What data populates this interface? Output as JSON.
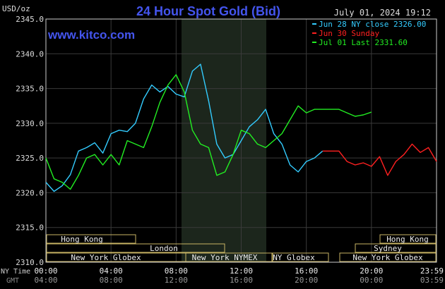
{
  "title": "24 Hour Spot Gold (Bid)",
  "unit_label": "USD/oz",
  "timestamp": "July 01, 2024 19:12",
  "site": "www.kitco.com",
  "legend": [
    {
      "label": "Jun 28 NY close 2326.00",
      "color": "#33ccff"
    },
    {
      "label": "Jun 30 Sunday",
      "color": "#ff2020"
    },
    {
      "label": "Jul 01 Last 2331.60",
      "color": "#22ee22"
    }
  ],
  "markets": [
    {
      "label": "Hong Kong"
    },
    {
      "label": "London"
    },
    {
      "label": "New York Globex"
    },
    {
      "label": "New York NYMEX"
    },
    {
      "label": "NY Globex"
    },
    {
      "label": "Hong Kong"
    },
    {
      "label": "Sydney"
    },
    {
      "label": "New York Globex"
    }
  ],
  "row_labels": {
    "ny": "NY Time",
    "gmt": "GMT"
  },
  "chart_data": {
    "type": "line",
    "title": "24 Hour Spot Gold (Bid)",
    "ylabel": "USD/oz",
    "ylim": [
      2310,
      2345
    ],
    "yticks": [
      "2345.0",
      "2340.0",
      "2335.0",
      "2330.0",
      "2325.0",
      "2320.0",
      "2315.0",
      "2310.0"
    ],
    "ytick_values": [
      2345,
      2340,
      2335,
      2330,
      2325,
      2320,
      2315,
      2310
    ],
    "xlim": [
      0,
      24
    ],
    "x_ticks_ny": [
      "00:00",
      "04:00",
      "08:00",
      "12:00",
      "16:00",
      "20:00",
      "23:59"
    ],
    "x_ticks_gmt": [
      "04:00",
      "08:00",
      "12:00",
      "16:00",
      "20:00",
      "00:00",
      "03:59"
    ],
    "x_tick_hours": [
      0,
      4,
      8,
      12,
      16,
      20,
      24
    ],
    "grid": true,
    "series": [
      {
        "name": "Jun 28 NY close 2326.00",
        "color": "#33ccff",
        "x": [
          0,
          0.5,
          1,
          1.5,
          2,
          2.5,
          3,
          3.5,
          4,
          4.5,
          5,
          5.5,
          6,
          6.5,
          7,
          7.5,
          8,
          8.5,
          9,
          9.5,
          10,
          10.5,
          11,
          11.5,
          12,
          12.5,
          13,
          13.5,
          14,
          14.5,
          15,
          15.5,
          16,
          16.5,
          17
        ],
        "y": [
          2321.5,
          2320.2,
          2321.0,
          2322.6,
          2326.0,
          2326.5,
          2327.2,
          2325.7,
          2328.5,
          2329.0,
          2328.8,
          2330.0,
          2333.5,
          2335.5,
          2334.5,
          2335.3,
          2334.2,
          2333.8,
          2337.5,
          2338.5,
          2333.2,
          2327.0,
          2325.0,
          2325.5,
          2327.5,
          2329.5,
          2330.5,
          2332.0,
          2328.5,
          2327.0,
          2324.0,
          2323.0,
          2324.5,
          2325.0,
          2326.0
        ]
      },
      {
        "name": "Jun 30 Sunday",
        "color": "#ff2020",
        "x": [
          17,
          18,
          18.5,
          19,
          19.5,
          20,
          20.5,
          21,
          21.5,
          22,
          22.5,
          23,
          23.5,
          24
        ],
        "y": [
          2326.0,
          2326.0,
          2324.5,
          2324.0,
          2324.3,
          2323.8,
          2325.2,
          2322.5,
          2324.5,
          2325.5,
          2327.0,
          2325.8,
          2326.5,
          2324.5
        ]
      },
      {
        "name": "Jul 01 Last 2331.60",
        "color": "#22ee22",
        "x": [
          0,
          0.5,
          1,
          1.5,
          2,
          2.5,
          3,
          3.5,
          4,
          4.5,
          5,
          5.5,
          6,
          6.5,
          7,
          7.5,
          8,
          8.5,
          9,
          9.5,
          10,
          10.5,
          11,
          11.5,
          12,
          12.5,
          13,
          13.5,
          14,
          14.5,
          15,
          15.5,
          16,
          16.5,
          17,
          17.5,
          18,
          18.5,
          19,
          19.5,
          20
        ],
        "y": [
          2325.0,
          2322.0,
          2321.5,
          2320.5,
          2322.5,
          2325.0,
          2325.5,
          2324.0,
          2325.5,
          2324.0,
          2327.5,
          2327.0,
          2326.5,
          2329.5,
          2333.0,
          2335.5,
          2337.0,
          2334.5,
          2329.0,
          2327.0,
          2326.5,
          2322.5,
          2323.0,
          2325.5,
          2329.0,
          2328.5,
          2327.0,
          2326.5,
          2327.5,
          2328.5,
          2330.5,
          2332.5,
          2331.5,
          2332.0,
          2332.0,
          2332.0,
          2332.0,
          2331.5,
          2331.0,
          2331.2,
          2331.6
        ]
      }
    ]
  }
}
